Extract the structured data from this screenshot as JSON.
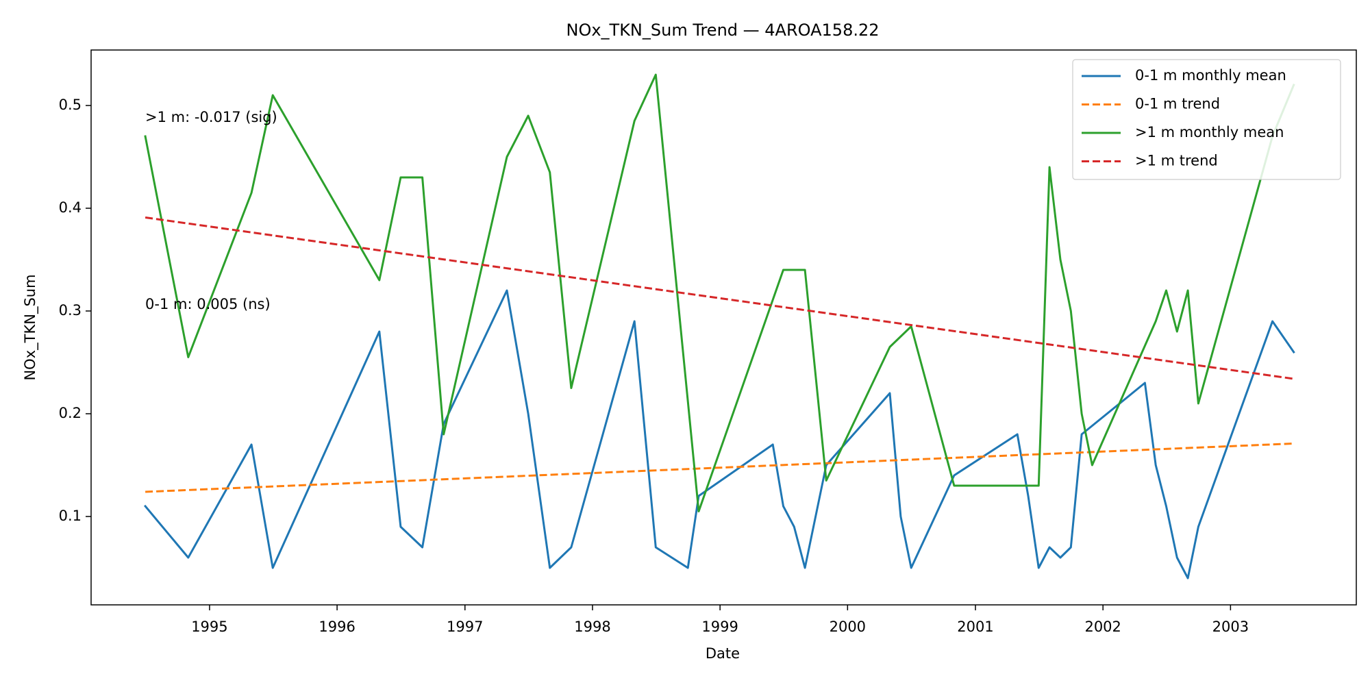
{
  "chart_data": {
    "type": "line",
    "title": "NOx_TKN_Sum Trend — 4AROA158.22",
    "xlabel": "Date",
    "ylabel": "NOx_TKN_Sum",
    "xlim": [
      "1994-01-27",
      "2003-12-27"
    ],
    "ylim": [
      0.014,
      0.554
    ],
    "x_ticks": [
      {
        "date": "1995-01-01",
        "label": "1995"
      },
      {
        "date": "1996-01-01",
        "label": "1996"
      },
      {
        "date": "1997-01-01",
        "label": "1997"
      },
      {
        "date": "1998-01-01",
        "label": "1998"
      },
      {
        "date": "1999-01-01",
        "label": "1999"
      },
      {
        "date": "2000-01-01",
        "label": "2000"
      },
      {
        "date": "2001-01-01",
        "label": "2001"
      },
      {
        "date": "2002-01-01",
        "label": "2002"
      },
      {
        "date": "2003-01-01",
        "label": "2003"
      }
    ],
    "y_ticks": [
      {
        "value": 0.1,
        "label": "0.1"
      },
      {
        "value": 0.2,
        "label": "0.2"
      },
      {
        "value": 0.3,
        "label": "0.3"
      },
      {
        "value": 0.4,
        "label": "0.4"
      },
      {
        "value": 0.5,
        "label": "0.5"
      }
    ],
    "grid": false,
    "legend_position": "top-right",
    "annotations": [
      {
        "text": ">1 m: -0.017 (sig)",
        "date": "1994-07-01",
        "value": 0.488
      },
      {
        "text": "0-1 m: 0.005 (ns)",
        "date": "1994-07-01",
        "value": 0.306
      }
    ],
    "series": [
      {
        "name": "0-1 m monthly mean",
        "color": "#1f77b4",
        "style": "solid",
        "points": [
          [
            "1994-07-01",
            0.11
          ],
          [
            "1994-11-01",
            0.06
          ],
          [
            "1995-05-01",
            0.17
          ],
          [
            "1995-07-01",
            0.05
          ],
          [
            "1996-05-01",
            0.28
          ],
          [
            "1996-07-01",
            0.09
          ],
          [
            "1996-09-01",
            0.07
          ],
          [
            "1996-11-01",
            0.19
          ],
          [
            "1997-05-01",
            0.32
          ],
          [
            "1997-07-01",
            0.2
          ],
          [
            "1997-09-01",
            0.05
          ],
          [
            "1997-11-01",
            0.07
          ],
          [
            "1998-05-01",
            0.29
          ],
          [
            "1998-07-01",
            0.07
          ],
          [
            "1998-10-01",
            0.05
          ],
          [
            "1998-11-01",
            0.12
          ],
          [
            "1999-06-01",
            0.17
          ],
          [
            "1999-07-01",
            0.11
          ],
          [
            "1999-08-01",
            0.09
          ],
          [
            "1999-09-01",
            0.05
          ],
          [
            "1999-11-01",
            0.15
          ],
          [
            "2000-05-01",
            0.22
          ],
          [
            "2000-06-01",
            0.1
          ],
          [
            "2000-07-01",
            0.05
          ],
          [
            "2000-11-01",
            0.14
          ],
          [
            "2001-05-01",
            0.18
          ],
          [
            "2001-06-01",
            0.12
          ],
          [
            "2001-07-01",
            0.05
          ],
          [
            "2001-08-01",
            0.07
          ],
          [
            "2001-09-01",
            0.06
          ],
          [
            "2001-10-01",
            0.07
          ],
          [
            "2001-11-01",
            0.18
          ],
          [
            "2002-05-01",
            0.23
          ],
          [
            "2002-06-01",
            0.15
          ],
          [
            "2002-07-01",
            0.11
          ],
          [
            "2002-08-01",
            0.06
          ],
          [
            "2002-09-01",
            0.04
          ],
          [
            "2002-10-01",
            0.09
          ],
          [
            "2003-05-01",
            0.29
          ],
          [
            "2003-07-01",
            0.26
          ]
        ]
      },
      {
        "name": "0-1 m trend",
        "color": "#ff7f0e",
        "style": "dashed",
        "points": [
          [
            "1994-07-01",
            0.124
          ],
          [
            "2003-07-01",
            0.171
          ]
        ]
      },
      {
        "name": ">1 m monthly mean",
        "color": "#2ca02c",
        "style": "solid",
        "points": [
          [
            "1994-07-01",
            0.47
          ],
          [
            "1994-11-01",
            0.255
          ],
          [
            "1995-05-01",
            0.415
          ],
          [
            "1995-07-01",
            0.51
          ],
          [
            "1996-05-01",
            0.33
          ],
          [
            "1996-07-01",
            0.43
          ],
          [
            "1996-09-01",
            0.43
          ],
          [
            "1996-11-01",
            0.18
          ],
          [
            "1997-05-01",
            0.45
          ],
          [
            "1997-07-01",
            0.49
          ],
          [
            "1997-09-01",
            0.435
          ],
          [
            "1997-11-01",
            0.225
          ],
          [
            "1998-05-01",
            0.485
          ],
          [
            "1998-07-01",
            0.53
          ],
          [
            "1998-11-01",
            0.105
          ],
          [
            "1999-07-01",
            0.34
          ],
          [
            "1999-09-01",
            0.34
          ],
          [
            "1999-11-01",
            0.135
          ],
          [
            "2000-05-01",
            0.265
          ],
          [
            "2000-07-01",
            0.285
          ],
          [
            "2000-11-01",
            0.13
          ],
          [
            "2001-07-01",
            0.13
          ],
          [
            "2001-08-01",
            0.44
          ],
          [
            "2001-09-01",
            0.35
          ],
          [
            "2001-10-01",
            0.3
          ],
          [
            "2001-11-01",
            0.2
          ],
          [
            "2001-12-01",
            0.15
          ],
          [
            "2002-06-01",
            0.29
          ],
          [
            "2002-07-01",
            0.32
          ],
          [
            "2002-08-01",
            0.28
          ],
          [
            "2002-09-01",
            0.32
          ],
          [
            "2002-10-01",
            0.21
          ],
          [
            "2003-05-01",
            0.47
          ],
          [
            "2003-07-01",
            0.52
          ]
        ]
      },
      {
        "name": ">1 m trend",
        "color": "#d62728",
        "style": "dashed",
        "points": [
          [
            "1994-07-01",
            0.391
          ],
          [
            "2003-07-01",
            0.234
          ]
        ]
      }
    ]
  }
}
